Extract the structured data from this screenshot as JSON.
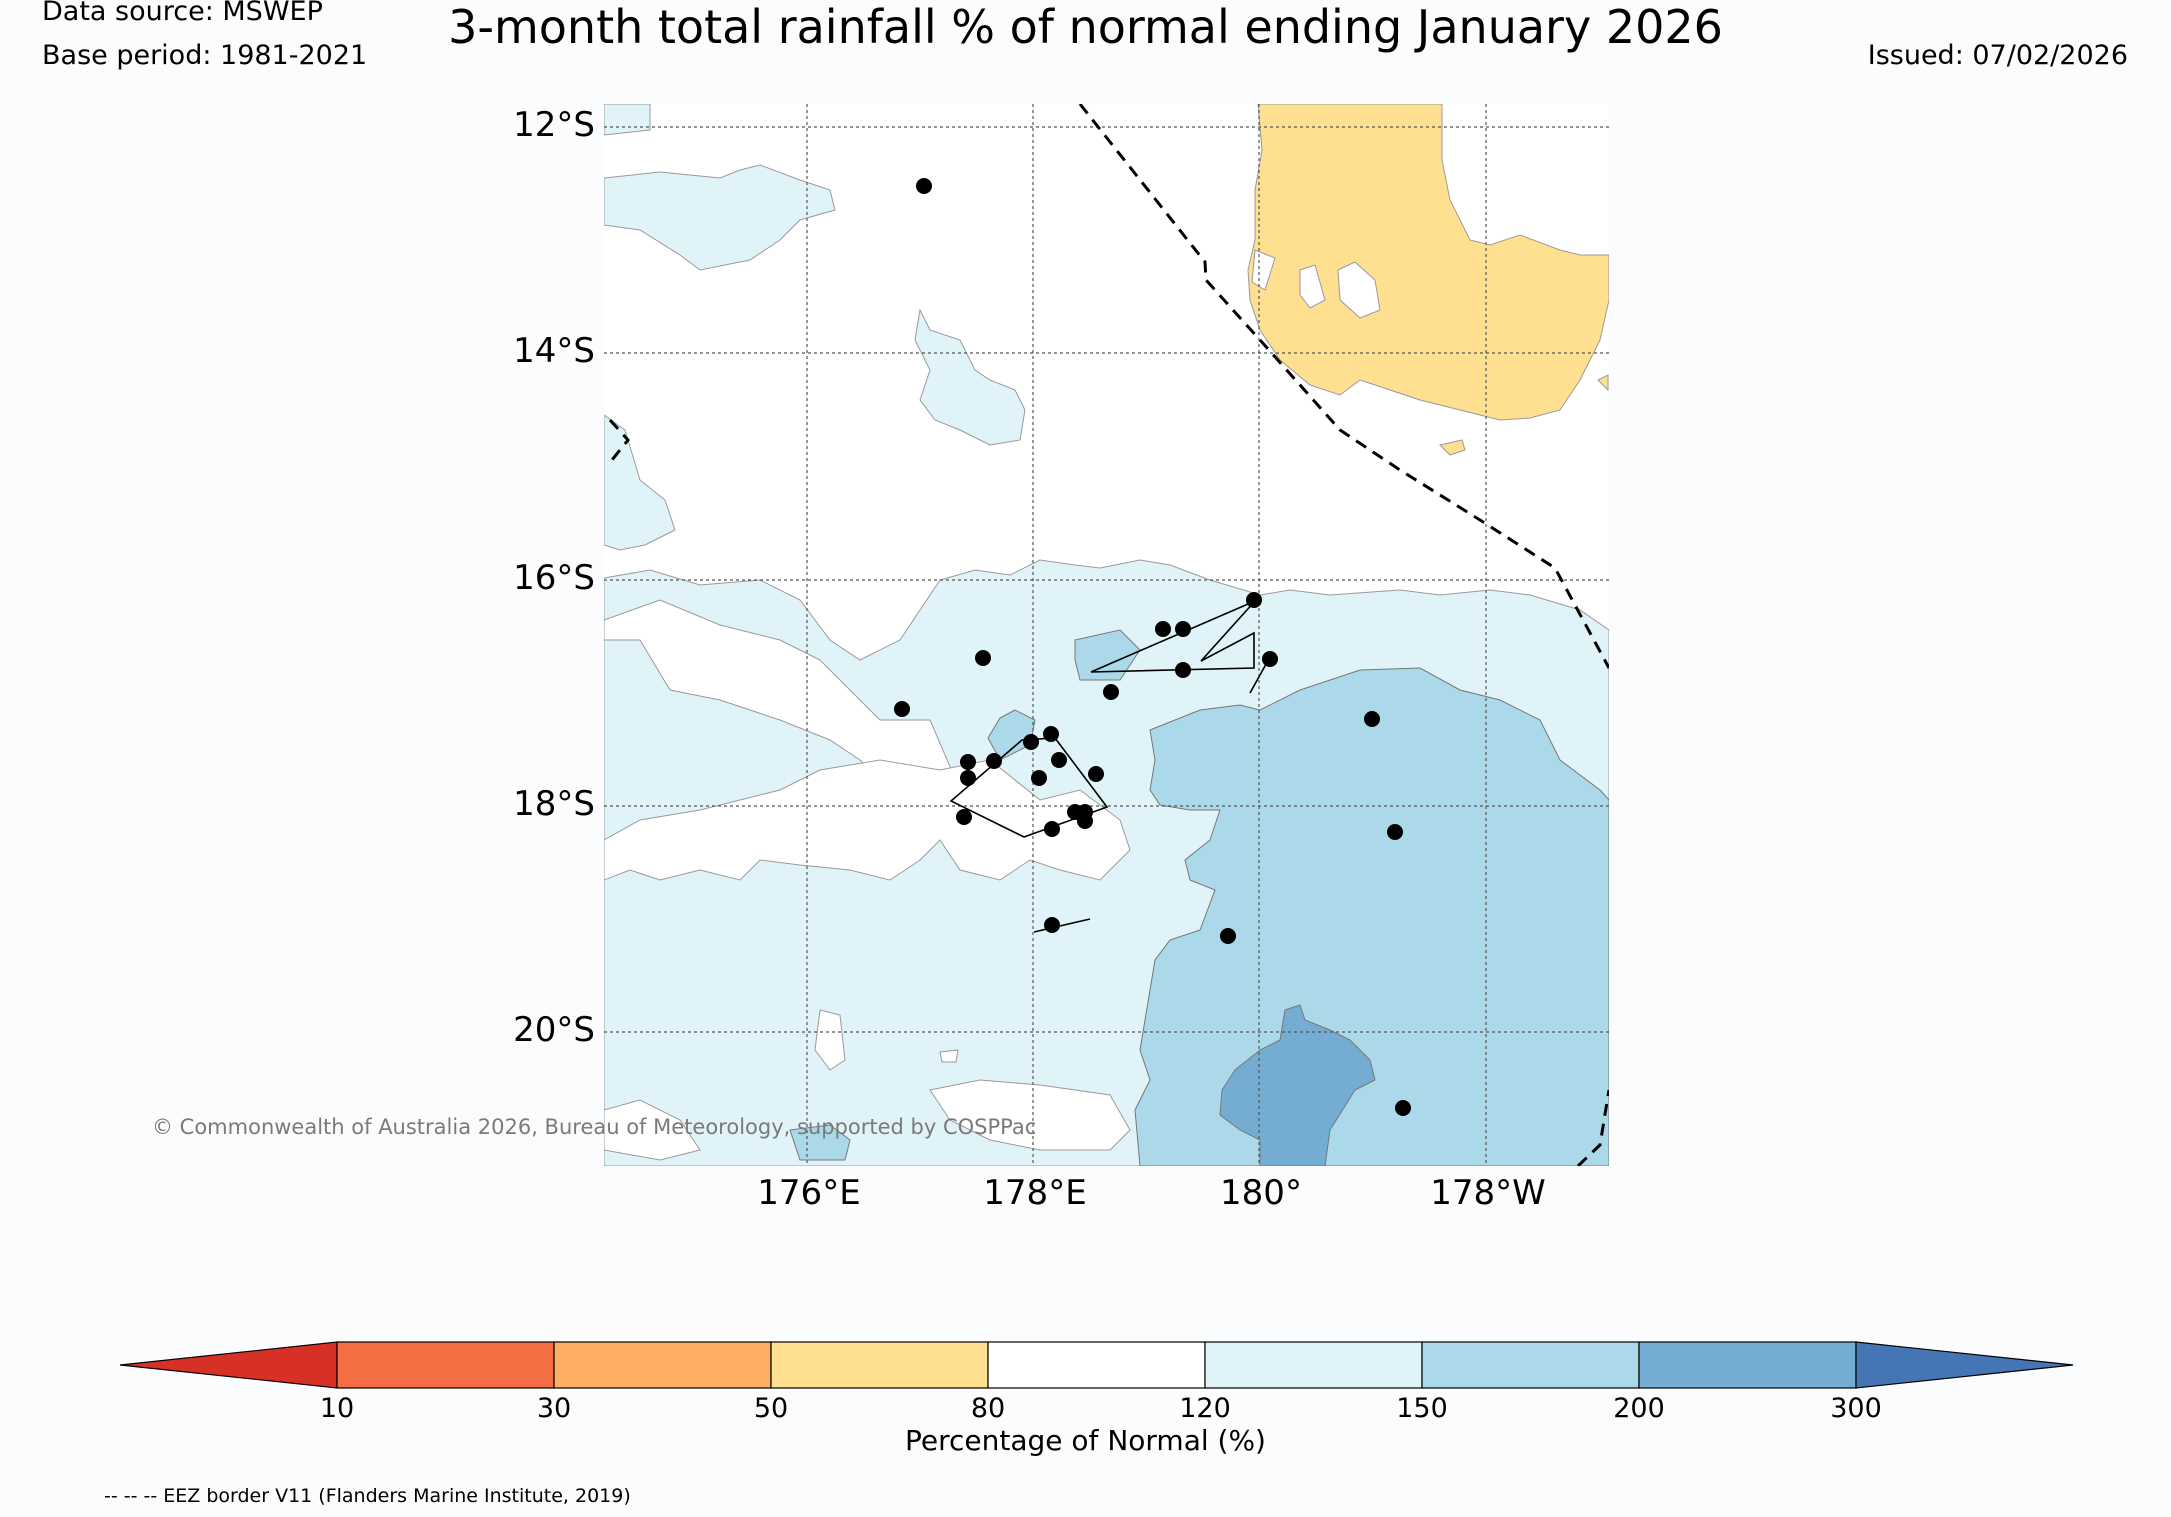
{
  "header": {
    "data_source": "Data source: MSWEP",
    "base_period": "Base period: 1981-2021",
    "title": "3-month total rainfall % of normal ending January 2026",
    "issued": "Issued: 07/02/2026"
  },
  "map": {
    "lat_labels": [
      "12°S",
      "14°S",
      "16°S",
      "18°S",
      "20°S"
    ],
    "lon_labels": [
      "176°E",
      "178°E",
      "180°",
      "178°W"
    ],
    "copyright": "© Commonwealth of Australia 2026, Bureau of Meteorology, supported by COSPPac",
    "category_colors": {
      "lt_10": "#d73027",
      "10_30": "#f46d43",
      "30_50": "#fdae61",
      "50_80": "#fee090",
      "80_120": "#ffffff",
      "120_150": "#e0f3f8",
      "150_200": "#abd9e9",
      "200_300": "#74add1",
      "gt_300": "#4575b4"
    }
  },
  "colorbar": {
    "ticks": [
      "10",
      "30",
      "50",
      "80",
      "120",
      "150",
      "200",
      "300"
    ],
    "label": "Percentage of Normal (%)"
  },
  "footer": {
    "eez_note": "-- -- -- EEZ border V11 (Flanders Marine Institute, 2019)"
  }
}
